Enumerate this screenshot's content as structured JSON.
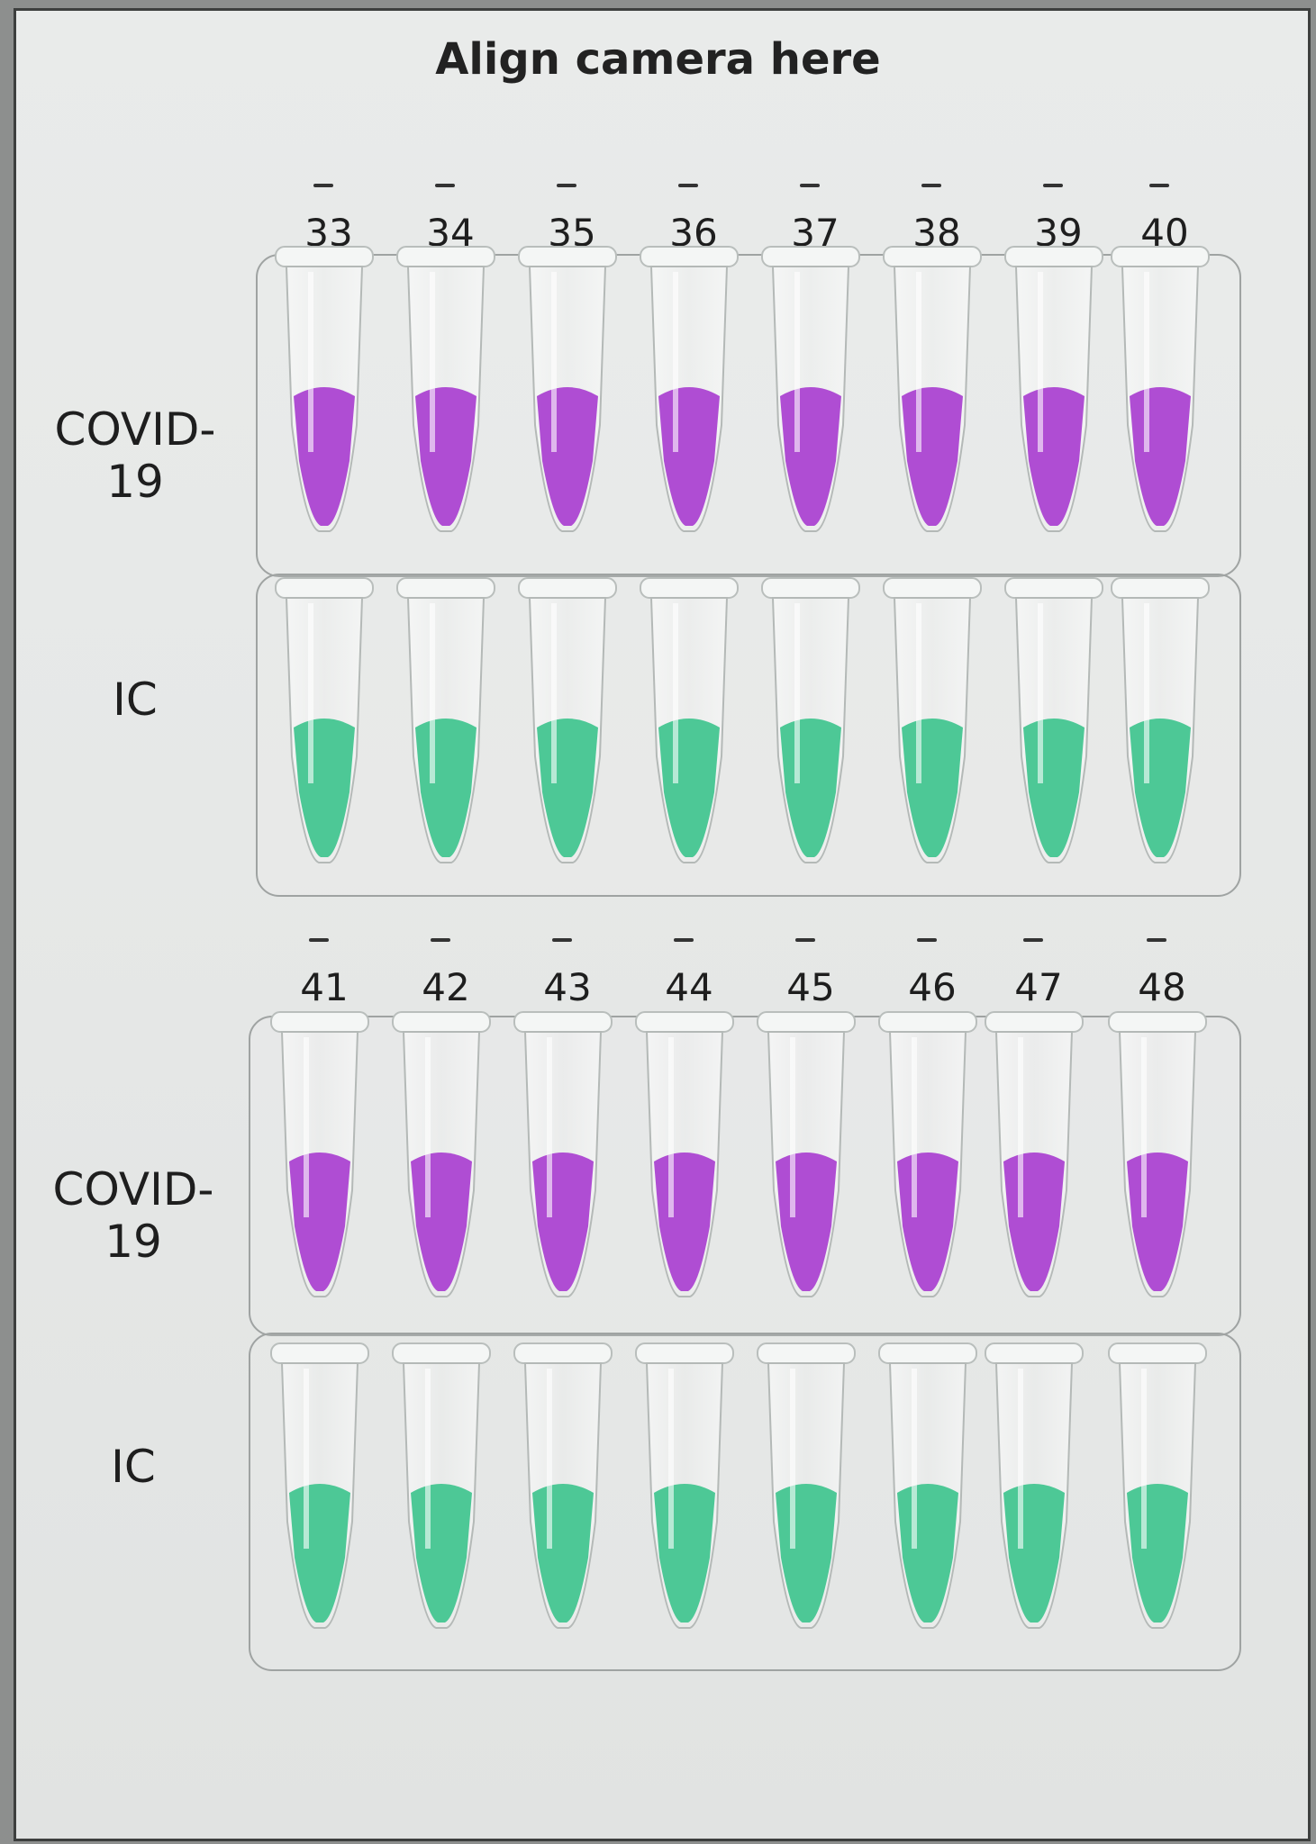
{
  "heading": "Align camera here",
  "blocks": [
    {
      "tube_numbers": [
        "33",
        "34",
        "35",
        "36",
        "37",
        "38",
        "39",
        "40"
      ],
      "rows": [
        {
          "label": "COVID-19",
          "liquid": "purple"
        },
        {
          "label": "IC",
          "liquid": "green"
        }
      ]
    },
    {
      "tube_numbers": [
        "41",
        "42",
        "43",
        "44",
        "45",
        "46",
        "47",
        "48"
      ],
      "rows": [
        {
          "label": "COVID-19",
          "liquid": "purple"
        },
        {
          "label": "IC",
          "liquid": "green"
        }
      ]
    }
  ],
  "colors": {
    "purple": "#a93fd0",
    "green": "#3fc48e"
  }
}
